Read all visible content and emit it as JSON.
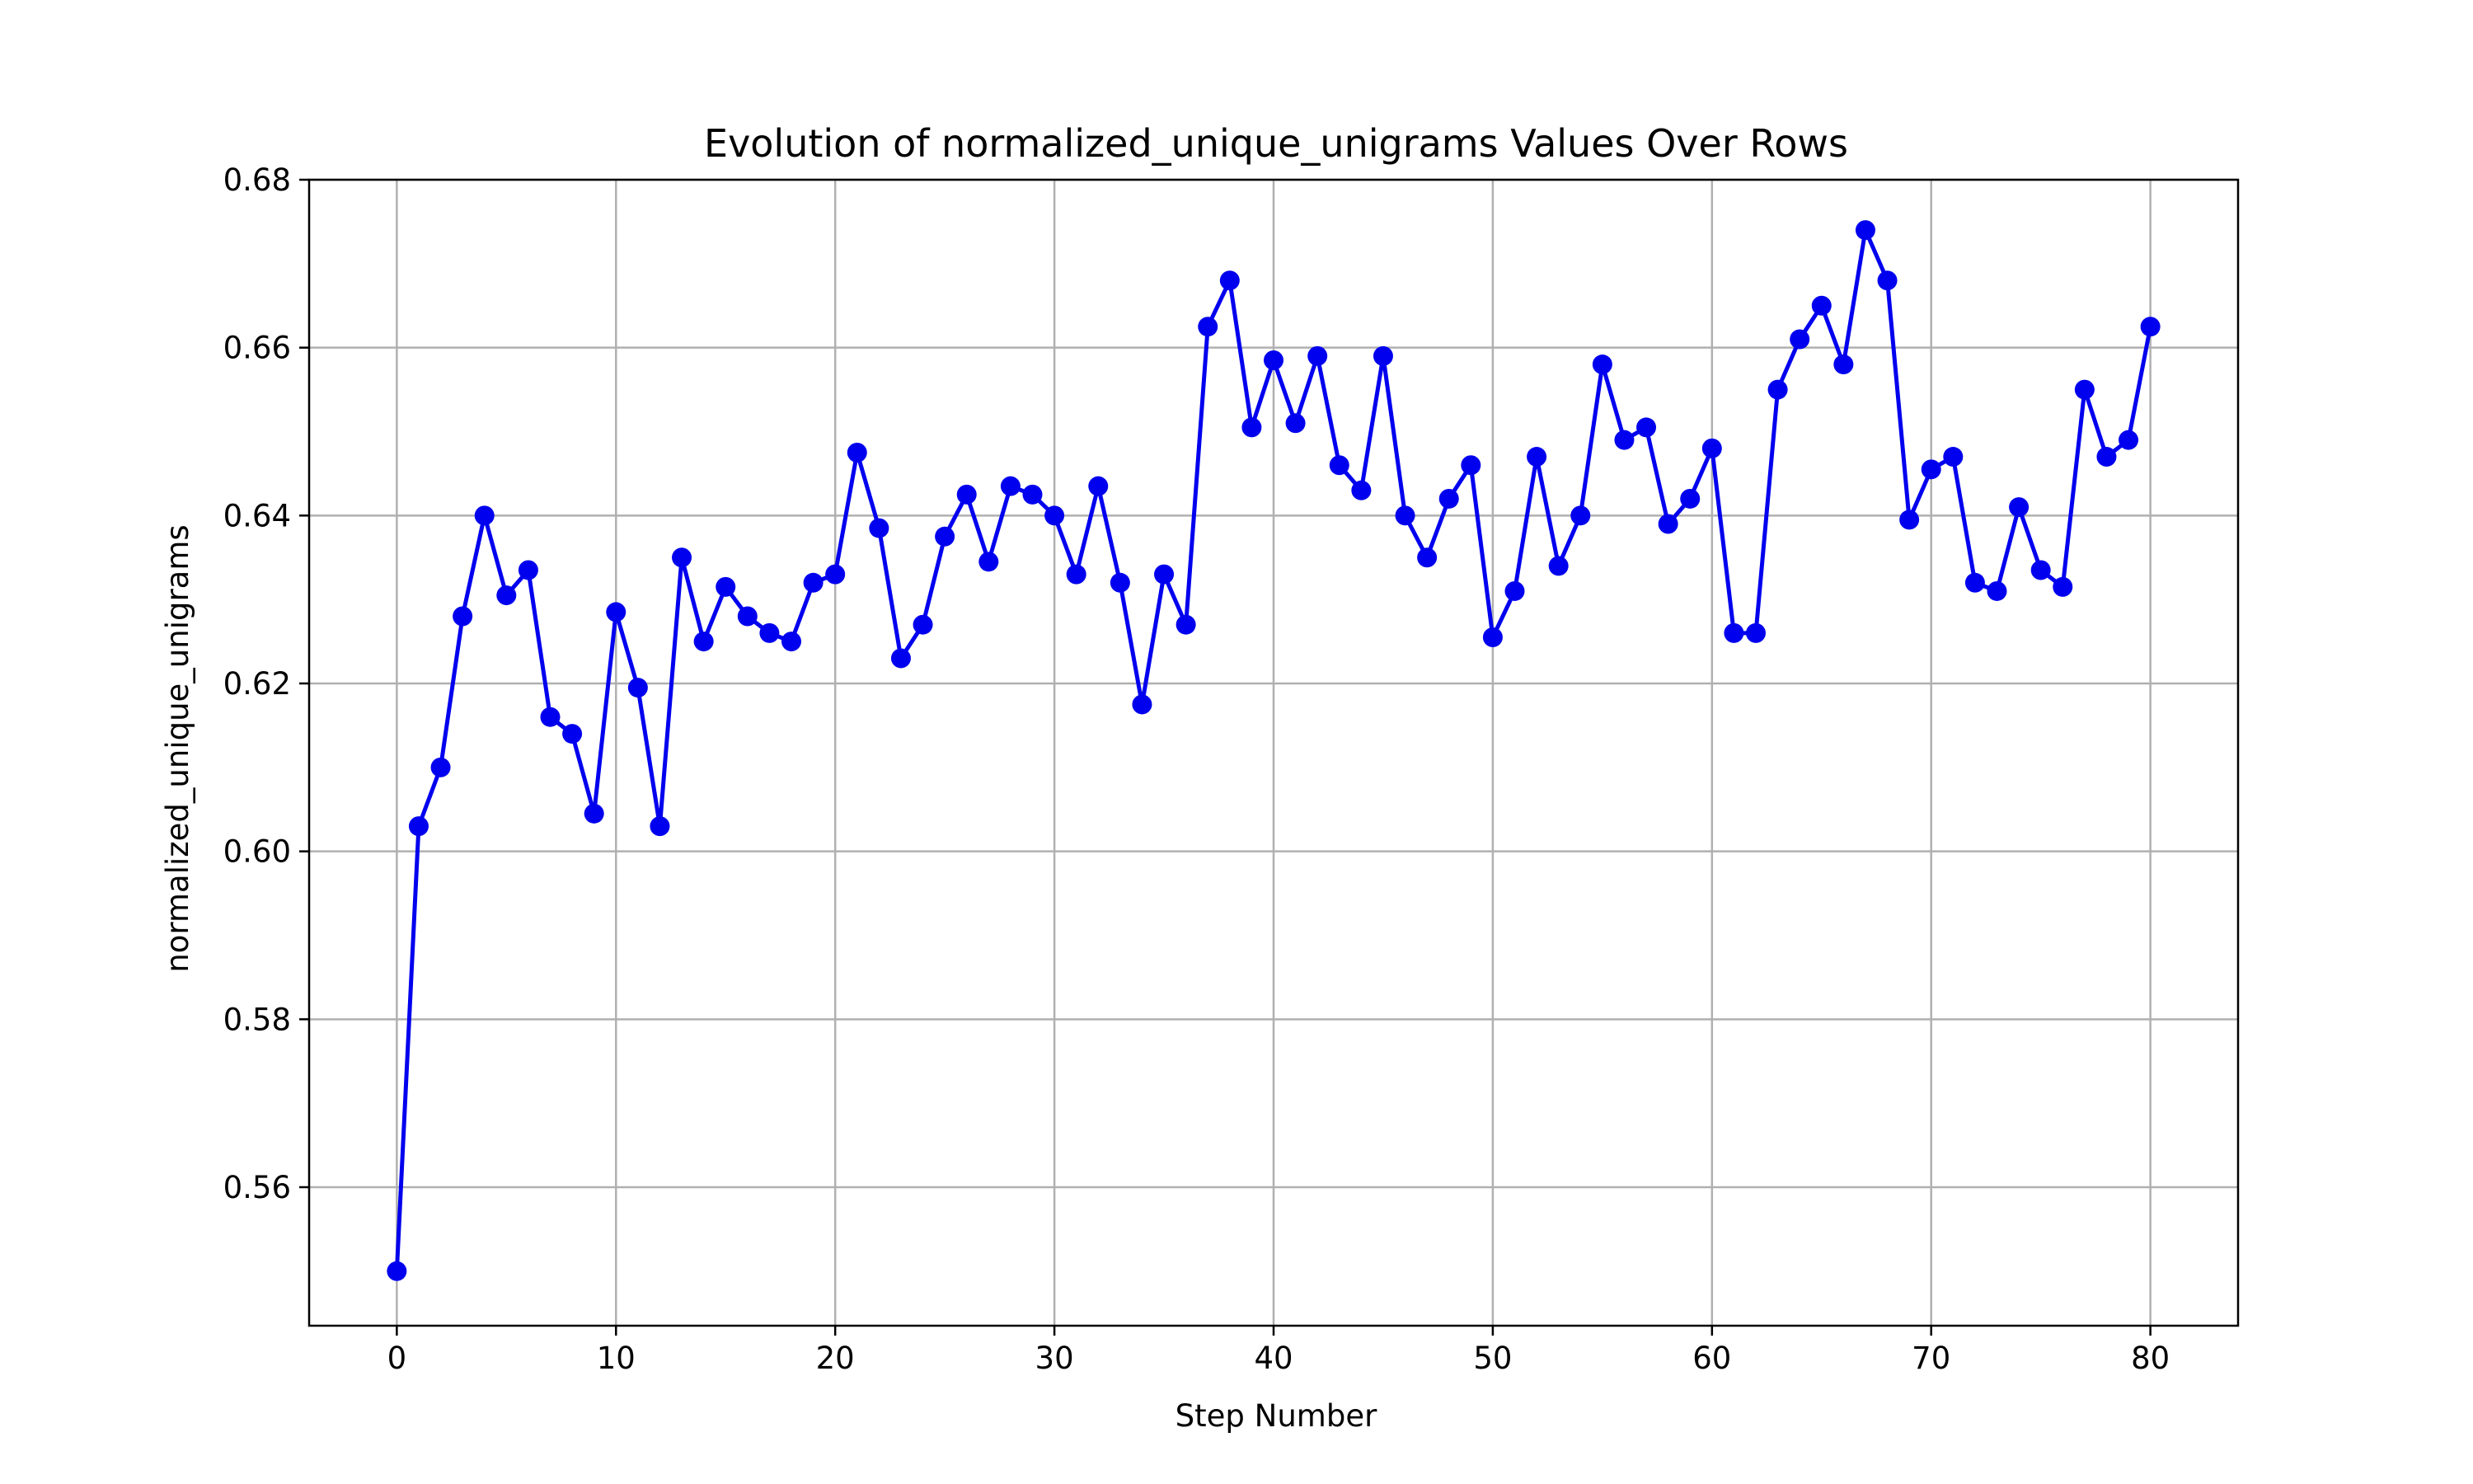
{
  "colors": {
    "series": "#0000ee",
    "grid": "#b0b0b0",
    "axis": "#000000",
    "background": "#ffffff"
  },
  "chart_data": {
    "type": "line",
    "title": "Evolution of normalized_unique_unigrams Values Over Rows",
    "xlabel": "Step Number",
    "ylabel": "normalized_unique_unigrams",
    "xlim": [
      -4,
      84
    ],
    "ylim": [
      0.5435,
      0.68
    ],
    "grid": true,
    "marker": "circle",
    "xticks": [
      0,
      10,
      20,
      30,
      40,
      50,
      60,
      70,
      80
    ],
    "xtick_labels": [
      "0",
      "10",
      "20",
      "30",
      "40",
      "50",
      "60",
      "70",
      "80"
    ],
    "yticks": [
      0.56,
      0.58,
      0.6,
      0.62,
      0.64,
      0.66,
      0.68
    ],
    "ytick_labels": [
      "0.56",
      "0.58",
      "0.60",
      "0.62",
      "0.64",
      "0.66",
      "0.68"
    ],
    "series": [
      {
        "x": [
          0,
          1,
          2,
          3,
          4,
          5,
          6,
          7,
          8,
          9,
          10,
          11,
          12,
          13,
          14,
          15,
          16,
          17,
          18,
          19,
          20,
          21,
          22,
          23,
          24,
          25,
          26,
          27,
          28,
          29,
          30,
          31,
          32,
          33,
          34,
          35,
          36,
          37,
          38,
          39,
          40,
          41,
          42,
          43,
          44,
          45,
          46,
          47,
          48,
          49,
          50,
          51,
          52,
          53,
          54,
          55,
          56,
          57,
          58,
          59,
          60,
          61,
          62,
          63,
          64,
          65,
          66,
          67,
          68,
          69,
          70,
          71,
          72,
          73,
          74,
          75,
          76,
          77,
          78,
          79,
          80
        ],
        "values": [
          0.55,
          0.603,
          0.61,
          0.628,
          0.64,
          0.6305,
          0.6335,
          0.616,
          0.614,
          0.6045,
          0.6285,
          0.6195,
          0.603,
          0.635,
          0.625,
          0.6315,
          0.628,
          0.626,
          0.625,
          0.632,
          0.633,
          0.6475,
          0.6385,
          0.623,
          0.627,
          0.6375,
          0.6425,
          0.6345,
          0.6435,
          0.6425,
          0.64,
          0.633,
          0.6435,
          0.632,
          0.6175,
          0.633,
          0.627,
          0.6625,
          0.668,
          0.6505,
          0.6585,
          0.651,
          0.659,
          0.646,
          0.643,
          0.659,
          0.64,
          0.635,
          0.642,
          0.646,
          0.6255,
          0.631,
          0.647,
          0.634,
          0.64,
          0.658,
          0.649,
          0.6505,
          0.639,
          0.642,
          0.648,
          0.626,
          0.626,
          0.655,
          0.661,
          0.665,
          0.658,
          0.674,
          0.668,
          0.6395,
          0.6455,
          0.647,
          0.632,
          0.631,
          0.641,
          0.6335,
          0.6315,
          0.655,
          0.647,
          0.649,
          0.6625
        ]
      }
    ]
  }
}
